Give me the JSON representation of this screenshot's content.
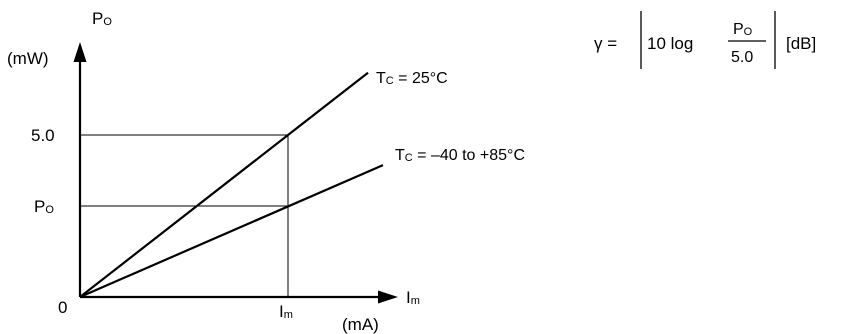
{
  "diagram": {
    "y_axis": {
      "symbol_main": "P",
      "symbol_sub": "O",
      "unit": "(mW)"
    },
    "x_axis": {
      "symbol_main": "I",
      "symbol_sub": "m",
      "unit": "(mA)"
    },
    "origin_label": "0",
    "y_ticks": [
      {
        "label": "5.0"
      },
      {
        "label_main": "P",
        "label_sub": "O"
      }
    ],
    "x_ticks": [
      {
        "label_main": "I",
        "label_sub": "m"
      }
    ],
    "lines": [
      {
        "label_main": "T",
        "label_sub": "C",
        "label_rest": " = 25°C",
        "end_relative_power": 1.35
      },
      {
        "label_main": "T",
        "label_sub": "C",
        "label_rest": " = –40 to +85°C",
        "end_relative_power": 0.78
      }
    ],
    "formula": {
      "lhs": "γ =",
      "inner_prefix": "10 log",
      "numerator_main": "P",
      "numerator_sub": "O",
      "denominator": "5.0",
      "unit": "[dB]"
    }
  }
}
